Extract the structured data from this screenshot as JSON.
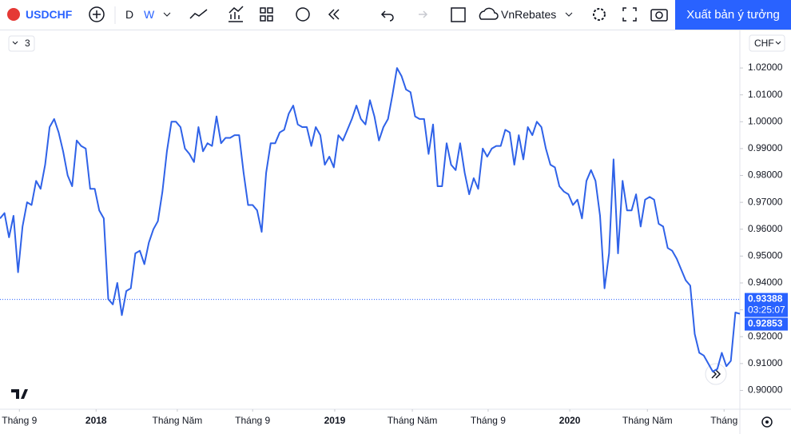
{
  "toolbar": {
    "symbol": "USDCHF",
    "interval_d": "D",
    "interval_w": "W",
    "account": "VnRebates",
    "publish": "Xuất bản ý tưởng"
  },
  "legend_toggle": "3",
  "currency": "CHF",
  "chart_data": {
    "type": "line",
    "color": "#2f62e8",
    "values": [
      0.964,
      0.966,
      0.957,
      0.965,
      0.944,
      0.961,
      0.97,
      0.969,
      0.978,
      0.975,
      0.984,
      0.998,
      1.001,
      0.996,
      0.989,
      0.98,
      0.976,
      0.993,
      0.991,
      0.99,
      0.975,
      0.975,
      0.967,
      0.964,
      0.934,
      0.932,
      0.94,
      0.928,
      0.937,
      0.938,
      0.951,
      0.952,
      0.947,
      0.955,
      0.96,
      0.963,
      0.974,
      0.989,
      1.0,
      1.0,
      0.998,
      0.99,
      0.988,
      0.985,
      0.998,
      0.989,
      0.992,
      0.991,
      1.002,
      0.992,
      0.994,
      0.994,
      0.995,
      0.995,
      0.981,
      0.969,
      0.969,
      0.967,
      0.959,
      0.981,
      0.992,
      0.992,
      0.996,
      0.997,
      1.003,
      1.006,
      0.999,
      0.998,
      0.998,
      0.991,
      0.998,
      0.995,
      0.984,
      0.987,
      0.983,
      0.995,
      0.993,
      0.997,
      1.001,
      1.006,
      1.001,
      0.999,
      1.008,
      1.002,
      0.993,
      0.998,
      1.001,
      1.01,
      1.02,
      1.017,
      1.012,
      1.011,
      1.002,
      1.001,
      1.001,
      0.988,
      0.999,
      0.976,
      0.976,
      0.992,
      0.984,
      0.982,
      0.992,
      0.981,
      0.973,
      0.979,
      0.975,
      0.99,
      0.987,
      0.99,
      0.991,
      0.991,
      0.997,
      0.996,
      0.984,
      0.995,
      0.986,
      0.998,
      0.995,
      1.0,
      0.998,
      0.99,
      0.984,
      0.983,
      0.976,
      0.974,
      0.973,
      0.969,
      0.971,
      0.964,
      0.978,
      0.982,
      0.978,
      0.965,
      0.938,
      0.951,
      0.986,
      0.951,
      0.978,
      0.967,
      0.967,
      0.973,
      0.961,
      0.971,
      0.972,
      0.971,
      0.962,
      0.961,
      0.953,
      0.952,
      0.949,
      0.945,
      0.941,
      0.939,
      0.921,
      0.914,
      0.913,
      0.91,
      0.907,
      0.908,
      0.914,
      0.909,
      0.911,
      0.929,
      0.92853
    ],
    "xlim": [
      0,
      164
    ],
    "xticks": [
      {
        "value": 4.3,
        "label": "Tháng 9"
      },
      {
        "value": 21.3,
        "label": "2018"
      },
      {
        "value": 39.3,
        "label": "Tháng Năm"
      },
      {
        "value": 56,
        "label": "Tháng 9"
      },
      {
        "value": 74.2,
        "label": "2019"
      },
      {
        "value": 91.4,
        "label": "Tháng Năm"
      },
      {
        "value": 108.2,
        "label": "Tháng 9"
      },
      {
        "value": 126.3,
        "label": "2020"
      },
      {
        "value": 143.5,
        "label": "Tháng Năm"
      },
      {
        "value": 160.5,
        "label": "Tháng"
      }
    ],
    "ylim": [
      0.893,
      1.034
    ],
    "yticks": [
      {
        "value": 0.9,
        "label": "0.90000"
      },
      {
        "value": 0.91,
        "label": "0.91000"
      },
      {
        "value": 0.92,
        "label": "0.92000"
      },
      {
        "value": 0.93,
        "label": "0.93000"
      },
      {
        "value": 0.94,
        "label": "0.94000"
      },
      {
        "value": 0.95,
        "label": "0.95000"
      },
      {
        "value": 0.96,
        "label": "0.96000"
      },
      {
        "value": 0.97,
        "label": "0.97000"
      },
      {
        "value": 0.98,
        "label": "0.98000"
      },
      {
        "value": 0.99,
        "label": "0.99000"
      },
      {
        "value": 1.0,
        "label": "1.00000"
      },
      {
        "value": 1.01,
        "label": "1.01000"
      },
      {
        "value": 1.02,
        "label": "1.02000"
      }
    ],
    "grid": false,
    "price_line": 0.93388,
    "countdown": "03:25:07"
  }
}
